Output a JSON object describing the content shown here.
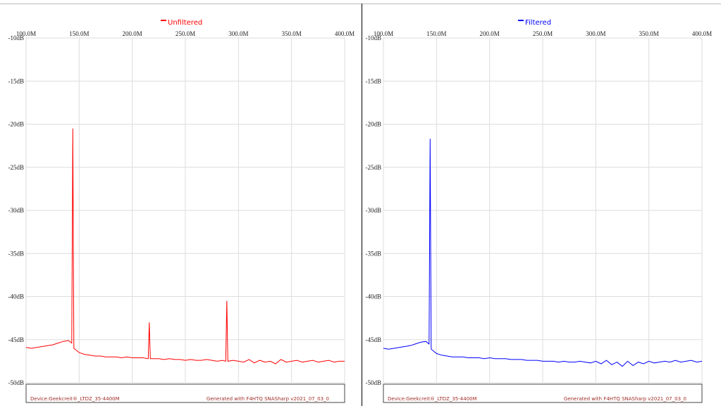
{
  "chart_data": [
    {
      "type": "line",
      "grid": true,
      "x": [
        100,
        105,
        110,
        115,
        120,
        125,
        130,
        135,
        140,
        143,
        144,
        145,
        150,
        155,
        160,
        165,
        170,
        175,
        180,
        185,
        190,
        195,
        200,
        205,
        210,
        215,
        216,
        217,
        220,
        225,
        230,
        235,
        240,
        245,
        250,
        255,
        260,
        265,
        270,
        275,
        280,
        285,
        288,
        289,
        290,
        295,
        300,
        305,
        310,
        315,
        320,
        325,
        330,
        335,
        340,
        345,
        350,
        355,
        360,
        365,
        370,
        375,
        380,
        385,
        390,
        395,
        400
      ],
      "series": [
        {
          "name": "Unfiltered",
          "color": "#ff0000",
          "values": [
            -45.9,
            -46.0,
            -45.9,
            -45.8,
            -45.7,
            -45.6,
            -45.4,
            -45.2,
            -45.1,
            -45.4,
            -20.5,
            -46.0,
            -46.5,
            -46.7,
            -46.8,
            -46.9,
            -46.9,
            -47.0,
            -47.0,
            -47.0,
            -47.1,
            -47.0,
            -47.1,
            -47.1,
            -47.1,
            -47.2,
            -43.0,
            -47.2,
            -47.2,
            -47.2,
            -47.3,
            -47.2,
            -47.3,
            -47.3,
            -47.4,
            -47.3,
            -47.4,
            -47.4,
            -47.3,
            -47.4,
            -47.5,
            -47.4,
            -47.5,
            -40.5,
            -47.5,
            -47.4,
            -47.5,
            -47.6,
            -47.3,
            -47.7,
            -47.4,
            -47.6,
            -47.5,
            -47.8,
            -47.3,
            -47.6,
            -47.5,
            -47.4,
            -47.6,
            -47.5,
            -47.4,
            -47.6,
            -47.5,
            -47.4,
            -47.6,
            -47.5,
            -47.5
          ]
        }
      ],
      "xlim": [
        100,
        400
      ],
      "xticks": [
        {
          "value": 100,
          "label": "100.0M"
        },
        {
          "value": 150,
          "label": "150.0M"
        },
        {
          "value": 200,
          "label": "200.0M"
        },
        {
          "value": 250,
          "label": "250.0M"
        },
        {
          "value": 300,
          "label": "300.0M"
        },
        {
          "value": 350,
          "label": "350.0M"
        },
        {
          "value": 400,
          "label": "400.0M"
        }
      ],
      "ylim": [
        -10,
        -50
      ],
      "yticks": [
        {
          "value": -10,
          "label": "-10dB"
        },
        {
          "value": -15,
          "label": "-15dB"
        },
        {
          "value": -20,
          "label": "-20dB"
        },
        {
          "value": -25,
          "label": "-25dB"
        },
        {
          "value": -30,
          "label": "-30dB"
        },
        {
          "value": -35,
          "label": "-35dB"
        },
        {
          "value": -40,
          "label": "-40dB"
        },
        {
          "value": -45,
          "label": "-45dB"
        },
        {
          "value": -50,
          "label": "-50dB"
        }
      ],
      "annotations": [
        "Device:Geekcreit®_LTDZ_35-4400M",
        "Generated with F4HTQ SNASharp v2021_07_03_0"
      ]
    },
    {
      "type": "line",
      "grid": true,
      "x": [
        100,
        105,
        110,
        115,
        120,
        125,
        130,
        135,
        140,
        143,
        144,
        145,
        150,
        155,
        160,
        165,
        170,
        175,
        180,
        185,
        190,
        195,
        200,
        205,
        210,
        215,
        220,
        225,
        230,
        235,
        240,
        245,
        250,
        255,
        260,
        265,
        270,
        275,
        280,
        285,
        290,
        295,
        300,
        305,
        310,
        315,
        320,
        325,
        330,
        335,
        340,
        345,
        350,
        355,
        360,
        365,
        370,
        375,
        380,
        385,
        390,
        395,
        400
      ],
      "series": [
        {
          "name": "Filtered",
          "color": "#0000ff",
          "values": [
            -46.0,
            -46.1,
            -46.0,
            -45.9,
            -45.8,
            -45.7,
            -45.5,
            -45.3,
            -45.2,
            -45.5,
            -21.7,
            -46.1,
            -46.6,
            -46.8,
            -46.9,
            -47.0,
            -47.0,
            -47.0,
            -47.1,
            -47.1,
            -47.1,
            -47.2,
            -47.1,
            -47.2,
            -47.2,
            -47.2,
            -47.3,
            -47.3,
            -47.3,
            -47.4,
            -47.4,
            -47.4,
            -47.5,
            -47.5,
            -47.5,
            -47.6,
            -47.5,
            -47.6,
            -47.6,
            -47.5,
            -47.6,
            -47.7,
            -47.5,
            -47.8,
            -47.4,
            -47.9,
            -47.6,
            -48.1,
            -47.5,
            -48.0,
            -47.6,
            -47.8,
            -47.5,
            -47.7,
            -47.6,
            -47.5,
            -47.6,
            -47.4,
            -47.6,
            -47.5,
            -47.4,
            -47.6,
            -47.5
          ]
        }
      ],
      "xlim": [
        100,
        400
      ],
      "xticks": [
        {
          "value": 100,
          "label": "100.0M"
        },
        {
          "value": 150,
          "label": "150.0M"
        },
        {
          "value": 200,
          "label": "200.0M"
        },
        {
          "value": 250,
          "label": "250.0M"
        },
        {
          "value": 300,
          "label": "300.0M"
        },
        {
          "value": 350,
          "label": "350.0M"
        },
        {
          "value": 400,
          "label": "400.0M"
        }
      ],
      "ylim": [
        -10,
        -50
      ],
      "yticks": [
        {
          "value": -10,
          "label": "-10dB"
        },
        {
          "value": -15,
          "label": "-15dB"
        },
        {
          "value": -20,
          "label": "-20dB"
        },
        {
          "value": -25,
          "label": "-25dB"
        },
        {
          "value": -30,
          "label": "-30dB"
        },
        {
          "value": -35,
          "label": "-35dB"
        },
        {
          "value": -40,
          "label": "-40dB"
        },
        {
          "value": -45,
          "label": "-45dB"
        },
        {
          "value": -50,
          "label": "-50dB"
        }
      ],
      "annotations": [
        "Device:Geekcreit®_LTDZ_35-4400M",
        "Generated with F4HTQ SNASharp v2021_07_03_0"
      ]
    }
  ]
}
